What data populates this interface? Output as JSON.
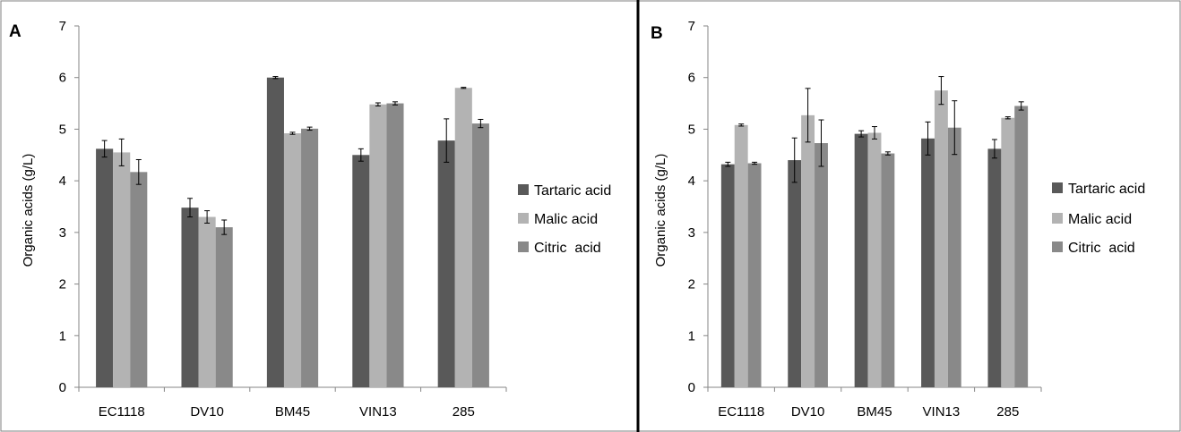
{
  "chart_data": [
    {
      "type": "bar",
      "panel_label": "A",
      "ylabel": "Organic acids (g/L)",
      "ylim": [
        0,
        7
      ],
      "yticks": [
        "0",
        "1",
        "2",
        "3",
        "4",
        "5",
        "6",
        "7"
      ],
      "categories": [
        "EC1118",
        "DV10",
        "BM45",
        "VIN13",
        "285"
      ],
      "series": [
        {
          "name": "Tartaric acid",
          "color": "#595959",
          "values": [
            4.62,
            3.48,
            6.0,
            4.5,
            4.78
          ],
          "errors": [
            0.16,
            0.18,
            0.02,
            0.12,
            0.42
          ]
        },
        {
          "name": "Malic acid",
          "color": "#b3b3b3",
          "values": [
            4.55,
            3.3,
            4.92,
            5.48,
            5.8
          ],
          "errors": [
            0.26,
            0.12,
            0.02,
            0.03,
            0.01
          ]
        },
        {
          "name": "Citric  acid",
          "color": "#898989",
          "values": [
            4.17,
            3.1,
            5.01,
            5.5,
            5.11
          ],
          "errors": [
            0.24,
            0.14,
            0.03,
            0.03,
            0.08
          ]
        }
      ],
      "legend_position": "right",
      "grid": false
    },
    {
      "type": "bar",
      "panel_label": "B",
      "ylabel": "Organic acids (g/L)",
      "ylim": [
        0,
        7
      ],
      "yticks": [
        "0",
        "1",
        "2",
        "3",
        "4",
        "5",
        "6",
        "7"
      ],
      "categories": [
        "EC1118",
        "DV10",
        "BM45",
        "VIN13",
        "285"
      ],
      "series": [
        {
          "name": "Tartaric acid",
          "color": "#595959",
          "values": [
            4.32,
            4.4,
            4.91,
            4.82,
            4.62
          ],
          "errors": [
            0.04,
            0.43,
            0.06,
            0.32,
            0.18
          ]
        },
        {
          "name": "Malic acid",
          "color": "#b3b3b3",
          "values": [
            5.08,
            5.27,
            4.93,
            5.75,
            5.22
          ],
          "errors": [
            0.02,
            0.52,
            0.12,
            0.27,
            0.02
          ]
        },
        {
          "name": "Citric  acid",
          "color": "#898989",
          "values": [
            4.34,
            4.73,
            4.53,
            5.03,
            5.45
          ],
          "errors": [
            0.02,
            0.45,
            0.03,
            0.52,
            0.08
          ]
        }
      ],
      "legend_position": "right",
      "grid": false
    }
  ]
}
